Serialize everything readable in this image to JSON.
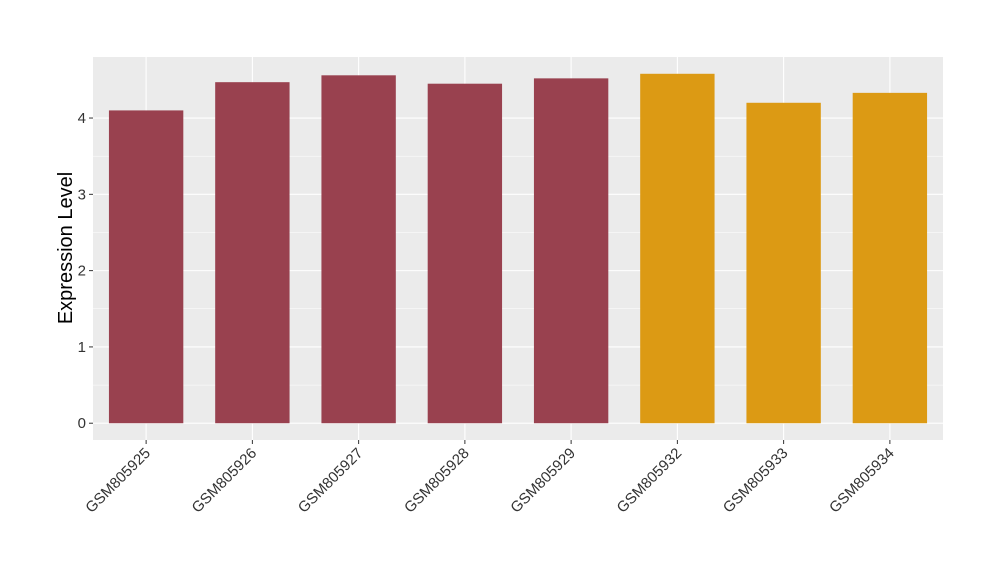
{
  "chart_data": {
    "type": "bar",
    "y_label": "Expression Level",
    "categories": [
      "GSM805925",
      "GSM805926",
      "GSM805927",
      "GSM805928",
      "GSM805929",
      "GSM805932",
      "GSM805933",
      "GSM805934"
    ],
    "values": [
      4.1,
      4.47,
      4.56,
      4.45,
      4.52,
      4.58,
      4.2,
      4.33
    ],
    "colors": [
      "#99414f",
      "#99414f",
      "#99414f",
      "#99414f",
      "#99414f",
      "#dc9a14",
      "#dc9a14",
      "#dc9a14"
    ],
    "ylim": [
      -0.22,
      4.8
    ],
    "yticks": [
      0,
      1,
      2,
      3,
      4
    ],
    "grid": true
  }
}
